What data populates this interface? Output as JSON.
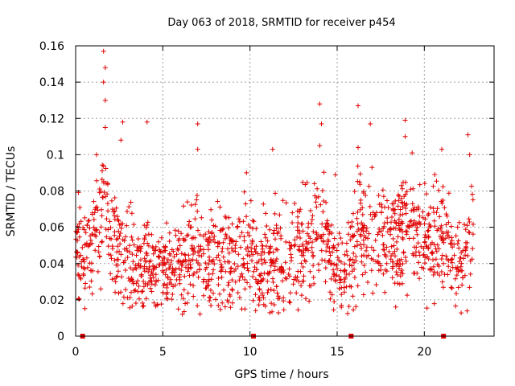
{
  "chart_data": {
    "type": "scatter",
    "title": "Day 063 of 2018, SRMTID for receiver p454",
    "xlabel": "GPS time / hours",
    "ylabel": "SRMTID / TECUs",
    "xlim": [
      0,
      24
    ],
    "ylim": [
      0,
      0.16
    ],
    "x_ticks": [
      0,
      5,
      10,
      15,
      20
    ],
    "x_tick_labels": [
      "0",
      "5",
      "10",
      "15",
      "20"
    ],
    "y_ticks": [
      0,
      0.02,
      0.04,
      0.06,
      0.08,
      0.1,
      0.12,
      0.14,
      0.16
    ],
    "y_tick_labels": [
      "0",
      "0.02",
      "0.04",
      "0.06",
      "0.08",
      "0.1",
      "0.12",
      "0.14",
      "0.16"
    ],
    "grid": true,
    "marker": "+",
    "color": "#e00000",
    "baseline_markers_x": [
      0.4,
      10.2,
      15.8,
      21.1
    ],
    "envelope": {
      "x": [
        0,
        0.5,
        1.0,
        1.5,
        1.7,
        2.0,
        2.5,
        3.0,
        3.5,
        4.0,
        4.5,
        5.0,
        5.5,
        6.0,
        6.5,
        7.0,
        7.5,
        8.0,
        8.5,
        9.0,
        9.5,
        10.0,
        10.5,
        11.0,
        11.5,
        12.0,
        12.5,
        13.0,
        13.5,
        14.0,
        14.2,
        14.5,
        15.0,
        15.5,
        16.0,
        16.2,
        16.5,
        17.0,
        17.5,
        18.0,
        18.5,
        19.0,
        19.5,
        20.0,
        20.5,
        21.0,
        21.5,
        22.0,
        22.5,
        22.8
      ],
      "mean": [
        0.05,
        0.045,
        0.05,
        0.06,
        0.085,
        0.055,
        0.05,
        0.045,
        0.035,
        0.04,
        0.035,
        0.035,
        0.035,
        0.04,
        0.04,
        0.05,
        0.04,
        0.04,
        0.045,
        0.04,
        0.04,
        0.045,
        0.035,
        0.04,
        0.045,
        0.04,
        0.045,
        0.05,
        0.05,
        0.055,
        0.065,
        0.045,
        0.035,
        0.035,
        0.05,
        0.065,
        0.05,
        0.05,
        0.055,
        0.05,
        0.055,
        0.06,
        0.055,
        0.055,
        0.05,
        0.05,
        0.045,
        0.045,
        0.05,
        0.06
      ],
      "spread": [
        0.015,
        0.018,
        0.02,
        0.02,
        0.03,
        0.02,
        0.018,
        0.02,
        0.015,
        0.018,
        0.016,
        0.016,
        0.015,
        0.017,
        0.018,
        0.02,
        0.017,
        0.017,
        0.02,
        0.017,
        0.016,
        0.018,
        0.016,
        0.017,
        0.019,
        0.018,
        0.02,
        0.021,
        0.02,
        0.022,
        0.025,
        0.018,
        0.014,
        0.014,
        0.02,
        0.025,
        0.02,
        0.02,
        0.021,
        0.02,
        0.02,
        0.021,
        0.02,
        0.02,
        0.019,
        0.019,
        0.018,
        0.018,
        0.02,
        0.025
      ]
    },
    "peaks": [
      {
        "x": 1.6,
        "y": 0.157
      },
      {
        "x": 1.7,
        "y": 0.148
      },
      {
        "x": 1.6,
        "y": 0.14
      },
      {
        "x": 1.7,
        "y": 0.13
      },
      {
        "x": 1.7,
        "y": 0.115
      },
      {
        "x": 2.7,
        "y": 0.118
      },
      {
        "x": 2.6,
        "y": 0.108
      },
      {
        "x": 4.1,
        "y": 0.118
      },
      {
        "x": 7.0,
        "y": 0.117
      },
      {
        "x": 7.0,
        "y": 0.103
      },
      {
        "x": 11.3,
        "y": 0.103
      },
      {
        "x": 14.0,
        "y": 0.128
      },
      {
        "x": 14.1,
        "y": 0.117
      },
      {
        "x": 14.0,
        "y": 0.105
      },
      {
        "x": 16.2,
        "y": 0.127
      },
      {
        "x": 16.2,
        "y": 0.104
      },
      {
        "x": 16.9,
        "y": 0.117
      },
      {
        "x": 18.9,
        "y": 0.119
      },
      {
        "x": 18.9,
        "y": 0.11
      },
      {
        "x": 19.3,
        "y": 0.101
      },
      {
        "x": 21.0,
        "y": 0.103
      },
      {
        "x": 22.5,
        "y": 0.111
      },
      {
        "x": 22.6,
        "y": 0.1
      },
      {
        "x": 1.2,
        "y": 0.1
      },
      {
        "x": 9.8,
        "y": 0.09
      },
      {
        "x": 14.9,
        "y": 0.089
      }
    ],
    "n_points": 1500,
    "seed": 63
  }
}
